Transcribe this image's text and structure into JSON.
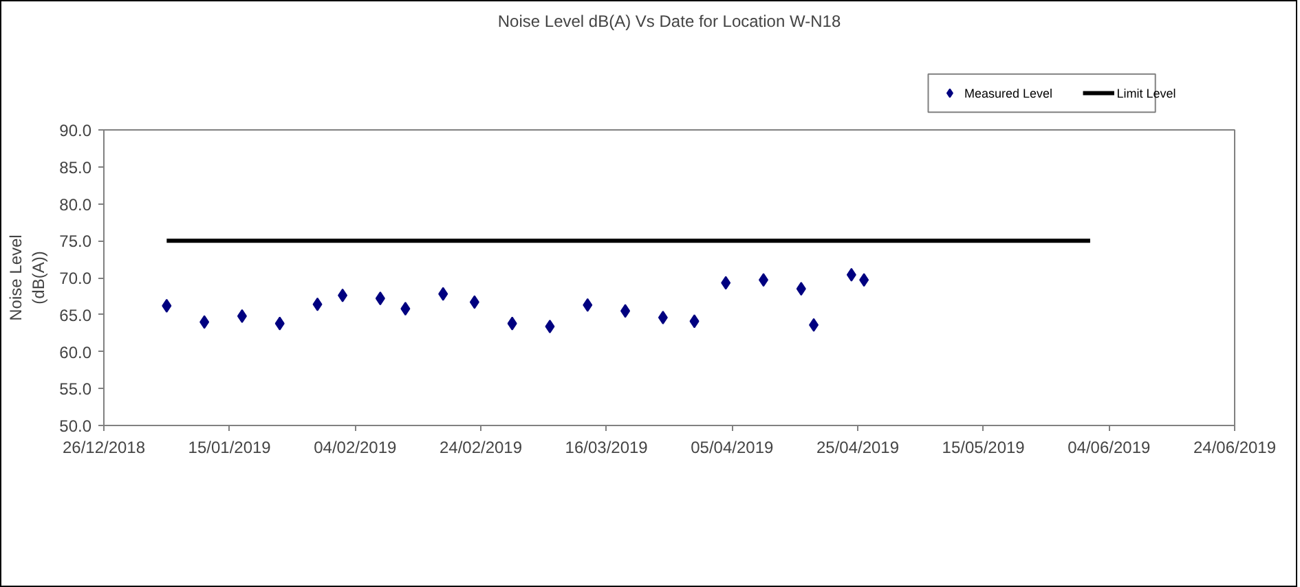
{
  "chart_data": {
    "type": "scatter",
    "title": "Noise Level dB(A) Vs Date for Location W-N18",
    "ylabel": "Noise Level (dB(A))",
    "x": [
      "2019-01-05",
      "2019-01-11",
      "2019-01-17",
      "2019-01-23",
      "2019-01-29",
      "2019-02-02",
      "2019-02-08",
      "2019-02-12",
      "2019-02-18",
      "2019-02-23",
      "2019-03-01",
      "2019-03-07",
      "2019-03-13",
      "2019-03-19",
      "2019-03-25",
      "2019-03-30",
      "2019-04-04",
      "2019-04-10",
      "2019-04-16",
      "2019-04-18",
      "2019-04-24",
      "2019-04-26"
    ],
    "series": [
      {
        "name": "Measured Level",
        "type": "scatter",
        "marker": "diamond",
        "color": "#000080",
        "values": [
          66.2,
          64.0,
          64.8,
          63.8,
          66.4,
          67.6,
          67.2,
          65.8,
          67.8,
          66.7,
          63.8,
          63.4,
          66.3,
          65.5,
          64.6,
          64.1,
          69.3,
          69.7,
          68.5,
          63.6,
          70.4,
          69.7
        ]
      },
      {
        "name": "Limit Level",
        "type": "line",
        "marker": "none",
        "line_style": "solid",
        "color": "#000000",
        "x": [
          "2019-01-05",
          "2019-06-01"
        ],
        "values": [
          75,
          75
        ]
      }
    ],
    "xlim": [
      "2018-12-26",
      "2019-06-24"
    ],
    "xticks": [
      {
        "value": "2018-12-26",
        "label": "26/12/2018"
      },
      {
        "value": "2019-01-15",
        "label": "15/01/2019"
      },
      {
        "value": "2019-02-04",
        "label": "04/02/2019"
      },
      {
        "value": "2019-02-24",
        "label": "24/02/2019"
      },
      {
        "value": "2019-03-16",
        "label": "16/03/2019"
      },
      {
        "value": "2019-04-05",
        "label": "05/04/2019"
      },
      {
        "value": "2019-04-25",
        "label": "25/04/2019"
      },
      {
        "value": "2019-05-15",
        "label": "15/05/2019"
      },
      {
        "value": "2019-06-04",
        "label": "04/06/2019"
      },
      {
        "value": "2019-06-24",
        "label": "24/06/2019"
      }
    ],
    "ylim": [
      50,
      90
    ],
    "yticks": [
      {
        "value": 50,
        "label": "50.0"
      },
      {
        "value": 55,
        "label": "55.0"
      },
      {
        "value": 60,
        "label": "60.0"
      },
      {
        "value": 65,
        "label": "65.0"
      },
      {
        "value": 70,
        "label": "70.0"
      },
      {
        "value": 75,
        "label": "75.0"
      },
      {
        "value": 80,
        "label": "80.0"
      },
      {
        "value": 85,
        "label": "85.0"
      },
      {
        "value": 90,
        "label": "90.0"
      }
    ],
    "grid": false,
    "legend": "top right"
  }
}
